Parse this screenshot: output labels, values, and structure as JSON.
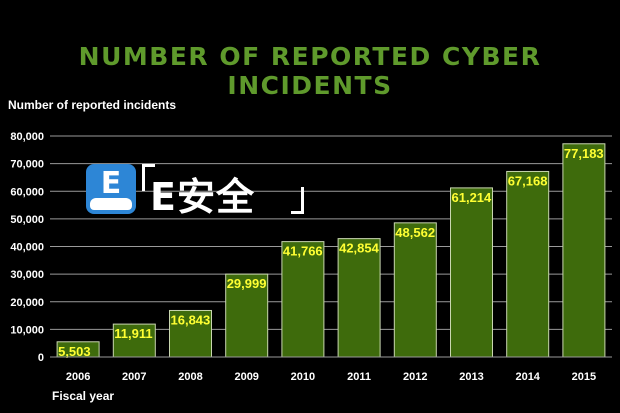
{
  "chart_data": {
    "type": "bar",
    "title": "NUMBER OF REPORTED CYBER INCIDENTS",
    "ylabel": "Number of reported incidents",
    "xlabel": "Fiscal year",
    "categories": [
      "2006",
      "2007",
      "2008",
      "2009",
      "2010",
      "2011",
      "2012",
      "2013",
      "2014",
      "2015"
    ],
    "values": [
      5503,
      11911,
      16843,
      29999,
      41766,
      42854,
      48562,
      61214,
      67168,
      77183
    ],
    "data_labels": [
      "5,503",
      "11,911",
      "16,843",
      "29,999",
      "41,766",
      "42,854",
      "48,562",
      "61,214",
      "67,168",
      "77,183"
    ],
    "yticks": [
      0,
      10000,
      20000,
      30000,
      40000,
      50000,
      60000,
      70000,
      80000
    ],
    "ytick_labels": [
      "0",
      "10,000",
      "20,000",
      "30,000",
      "40,000",
      "50,000",
      "60,000",
      "70,000",
      "80,000"
    ],
    "ylim": [
      0,
      80000
    ],
    "grid": true,
    "legend": "none",
    "colors": {
      "bar_fill": "#3e6b0c",
      "bar_stroke": "#c9d6b0",
      "title": "#5f9a2c",
      "data_label": "#ffff33",
      "grid": "#9a9a9a",
      "background": "#000000"
    }
  },
  "watermark": {
    "icon_letter": "E",
    "text": "E安全"
  }
}
